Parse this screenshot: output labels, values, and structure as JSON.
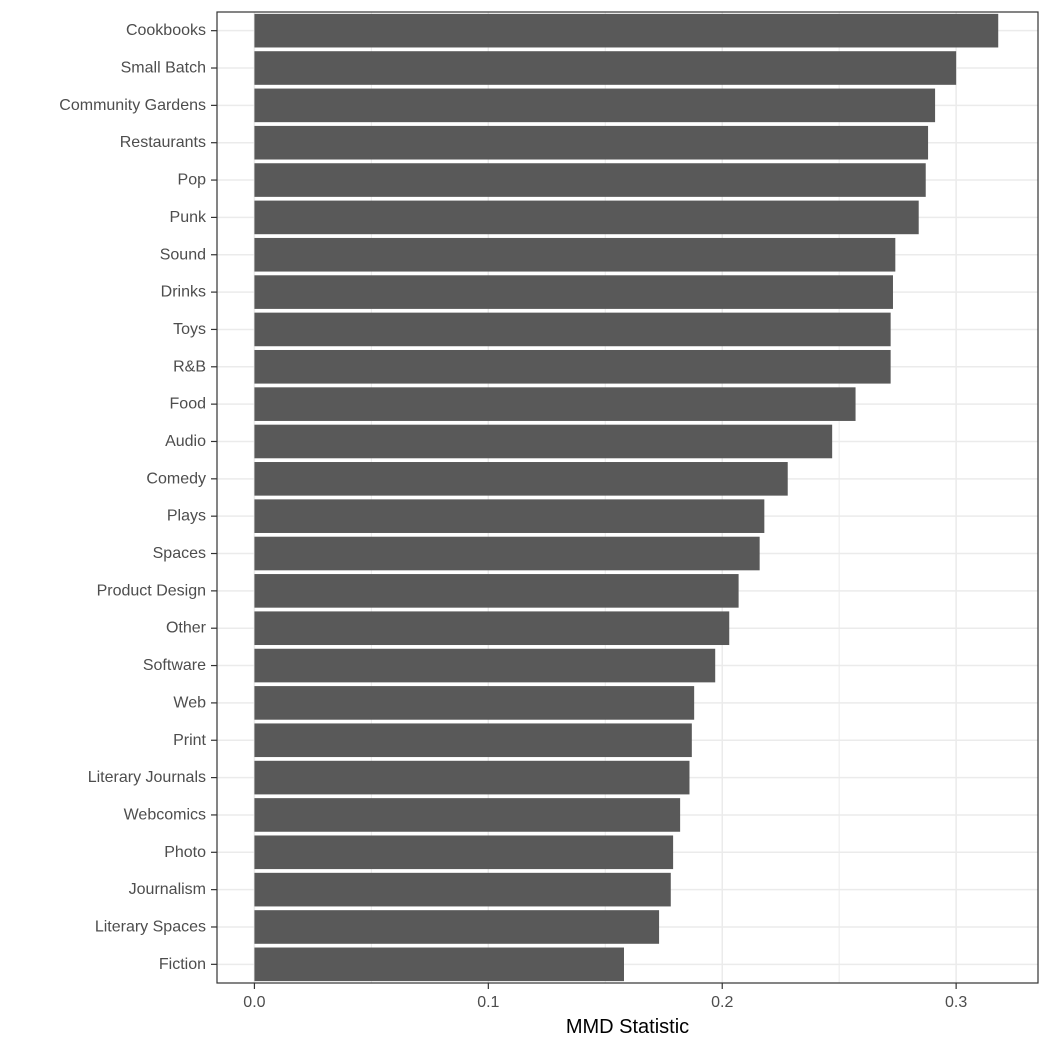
{
  "chart_data": {
    "type": "bar",
    "orientation": "horizontal",
    "title": "",
    "xlabel": "MMD Statistic",
    "ylabel": "",
    "xlim": [
      -0.016,
      0.335
    ],
    "x_ticks": [
      0.0,
      0.1,
      0.2,
      0.3
    ],
    "x_tick_labels": [
      "0.0",
      "0.1",
      "0.2",
      "0.3"
    ],
    "grid": true,
    "categories": [
      "Cookbooks",
      "Small Batch",
      "Community Gardens",
      "Restaurants",
      "Pop",
      "Punk",
      "Sound",
      "Drinks",
      "Toys",
      "R&B",
      "Food",
      "Audio",
      "Comedy",
      "Plays",
      "Spaces",
      "Product Design",
      "Other",
      "Software",
      "Web",
      "Print",
      "Literary Journals",
      "Webcomics",
      "Photo",
      "Journalism",
      "Literary Spaces",
      "Fiction"
    ],
    "values": [
      0.318,
      0.3,
      0.291,
      0.288,
      0.287,
      0.284,
      0.274,
      0.273,
      0.272,
      0.272,
      0.257,
      0.247,
      0.228,
      0.218,
      0.216,
      0.207,
      0.203,
      0.197,
      0.188,
      0.187,
      0.186,
      0.182,
      0.179,
      0.178,
      0.173,
      0.158
    ],
    "bar_color": "#595959",
    "grid_color": "#ebebeb",
    "panel_border_color": "#333333"
  }
}
